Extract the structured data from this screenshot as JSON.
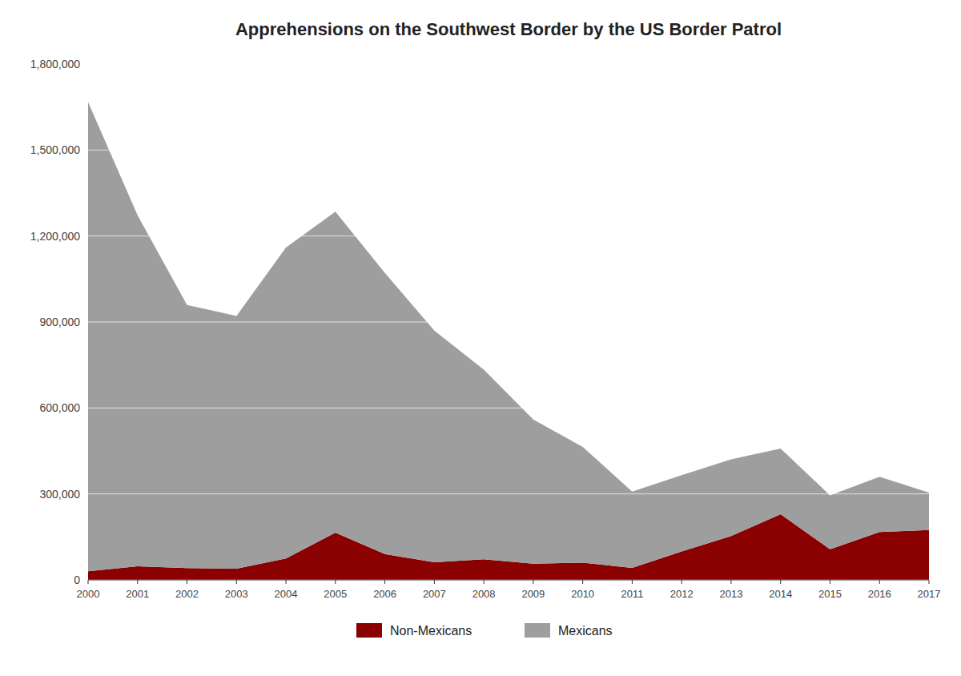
{
  "chart_data": {
    "type": "area",
    "stacked": true,
    "title": "Apprehensions on the Southwest Border by the US Border Patrol",
    "x": [
      2000,
      2001,
      2002,
      2003,
      2004,
      2005,
      2006,
      2007,
      2008,
      2009,
      2010,
      2011,
      2012,
      2013,
      2014,
      2015,
      2016,
      2017
    ],
    "series": [
      {
        "name": "Non-Mexicans",
        "color": "#8b0000",
        "values": [
          30147,
          47647,
          41190,
          39215,
          74910,
          165178,
          90119,
          61399,
          71963,
          56326,
          59916,
          42003,
          99506,
          152966,
          229178,
          107048,
          167121,
          174117
        ]
      },
      {
        "name": "Mexicans",
        "color": "#9e9e9e",
        "values": [
          1636883,
          1224978,
          917993,
          882012,
          1085006,
          1119671,
          981066,
          808678,
          661766,
          503386,
          404365,
          265974,
          265755,
          267734,
          229178,
          188122,
          192969,
          130454
        ]
      }
    ],
    "xlim": [
      2000,
      2017
    ],
    "xticks": [
      2000,
      2001,
      2002,
      2003,
      2004,
      2005,
      2006,
      2007,
      2008,
      2009,
      2010,
      2011,
      2012,
      2013,
      2014,
      2015,
      2016,
      2017
    ],
    "ylim": [
      0,
      1800000
    ],
    "yticks": [
      0,
      {
        "value": 300000,
        "label": "300,000"
      },
      {
        "value": 600000,
        "label": "600,000"
      },
      {
        "value": 900000,
        "label": "900,000"
      },
      {
        "value": 1200000,
        "label": "1,200,000"
      },
      {
        "value": 1500000,
        "label": "1,500,000"
      },
      {
        "value": 1800000,
        "label": "1,800,000"
      }
    ],
    "grid": true,
    "legend": "bottom"
  }
}
